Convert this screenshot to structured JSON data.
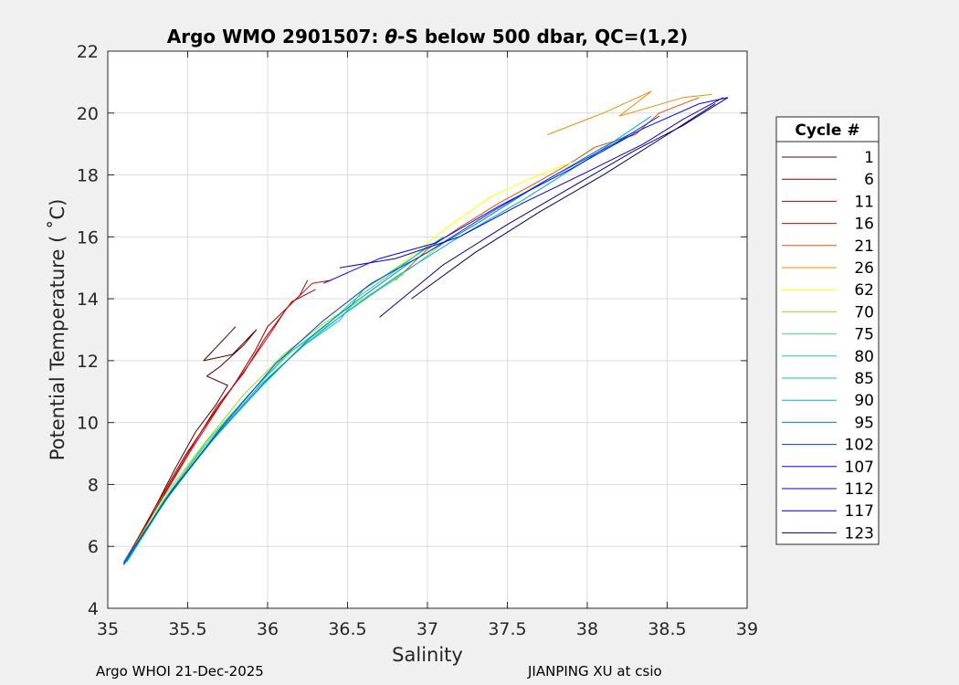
{
  "chart_data": {
    "type": "line",
    "title_main": "Argo WMO 2901507: ",
    "title_symbol": "θ",
    "title_tail": "-S below 500 dbar,  QC=(1,2)",
    "xlabel": "Salinity",
    "ylabel": "Potential Temperature ( ˚C)",
    "xlim": [
      35,
      39
    ],
    "ylim": [
      4,
      22
    ],
    "xticks": [
      35,
      35.5,
      36,
      36.5,
      37,
      37.5,
      38,
      38.5,
      39
    ],
    "yticks": [
      4,
      6,
      8,
      10,
      12,
      14,
      16,
      18,
      20,
      22
    ],
    "grid": true,
    "legend_title": "Cycle #",
    "legend_position": "right-outside",
    "series": [
      {
        "name": "1",
        "color": "#550000",
        "values": [
          [
            35.1,
            5.4
          ],
          [
            35.25,
            6.8
          ],
          [
            35.42,
            8.5
          ],
          [
            35.55,
            9.7
          ],
          [
            35.68,
            10.6
          ],
          [
            35.75,
            11.2
          ],
          [
            35.62,
            11.5
          ],
          [
            35.7,
            11.8
          ],
          [
            35.85,
            12.5
          ],
          [
            35.93,
            13.0
          ],
          [
            35.78,
            12.2
          ],
          [
            35.6,
            12.0
          ],
          [
            35.8,
            13.1
          ]
        ]
      },
      {
        "name": "6",
        "color": "#8b0000",
        "values": [
          [
            35.1,
            5.45
          ],
          [
            35.3,
            7.3
          ],
          [
            35.48,
            8.9
          ],
          [
            35.65,
            10.2
          ],
          [
            35.8,
            11.3
          ],
          [
            35.92,
            12.3
          ],
          [
            36.0,
            13.1
          ],
          [
            36.1,
            13.6
          ],
          [
            36.2,
            14.1
          ],
          [
            36.25,
            14.6
          ]
        ]
      },
      {
        "name": "11",
        "color": "#b50000",
        "values": [
          [
            35.12,
            5.5
          ],
          [
            35.32,
            7.4
          ],
          [
            35.5,
            9.0
          ],
          [
            35.68,
            10.5
          ],
          [
            35.85,
            11.6
          ],
          [
            35.98,
            12.7
          ],
          [
            36.08,
            13.4
          ],
          [
            36.15,
            13.9
          ],
          [
            36.3,
            14.3
          ]
        ]
      },
      {
        "name": "16",
        "color": "#d40000",
        "values": [
          [
            35.1,
            5.5
          ],
          [
            35.3,
            7.2
          ],
          [
            35.52,
            9.1
          ],
          [
            35.72,
            10.7
          ],
          [
            35.9,
            12.0
          ],
          [
            36.02,
            12.9
          ],
          [
            36.12,
            13.7
          ],
          [
            36.28,
            14.5
          ],
          [
            36.4,
            14.6
          ]
        ]
      },
      {
        "name": "21",
        "color": "#e25000",
        "values": [
          [
            36.8,
            14.6
          ],
          [
            37.0,
            15.6
          ],
          [
            37.2,
            16.3
          ],
          [
            37.45,
            17.1
          ],
          [
            37.7,
            17.8
          ],
          [
            37.9,
            18.4
          ],
          [
            38.05,
            18.9
          ],
          [
            38.3,
            19.3
          ],
          [
            38.45,
            20.0
          ],
          [
            38.7,
            20.5
          ]
        ]
      },
      {
        "name": "26",
        "color": "#f08c00",
        "values": [
          [
            37.75,
            19.3
          ],
          [
            38.1,
            20.0
          ],
          [
            38.4,
            20.7
          ],
          [
            38.2,
            19.9
          ],
          [
            38.6,
            20.5
          ],
          [
            38.78,
            20.6
          ]
        ]
      },
      {
        "name": "62",
        "color": "#ffff00",
        "values": [
          [
            36.7,
            14.6
          ],
          [
            36.95,
            15.6
          ],
          [
            37.15,
            16.4
          ],
          [
            37.4,
            17.3
          ],
          [
            37.65,
            17.9
          ],
          [
            37.9,
            18.4
          ]
        ]
      },
      {
        "name": "70",
        "color": "#90e020",
        "values": [
          [
            35.12,
            5.6
          ],
          [
            35.35,
            7.6
          ],
          [
            35.6,
            9.3
          ],
          [
            35.85,
            10.9
          ],
          [
            36.1,
            12.2
          ],
          [
            36.35,
            13.2
          ],
          [
            36.6,
            14.0
          ],
          [
            36.9,
            15.0
          ],
          [
            37.1,
            15.8
          ]
        ]
      },
      {
        "name": "75",
        "color": "#40e060",
        "values": [
          [
            35.12,
            5.6
          ],
          [
            35.38,
            7.7
          ],
          [
            35.62,
            9.4
          ],
          [
            35.9,
            11.0
          ],
          [
            36.15,
            12.3
          ],
          [
            36.45,
            13.4
          ],
          [
            36.7,
            14.3
          ],
          [
            36.85,
            14.8
          ]
        ]
      },
      {
        "name": "80",
        "color": "#20d090",
        "values": [
          [
            35.12,
            5.5
          ],
          [
            35.35,
            7.5
          ],
          [
            35.6,
            9.2
          ],
          [
            35.88,
            10.9
          ],
          [
            36.12,
            12.2
          ],
          [
            36.38,
            13.2
          ],
          [
            36.55,
            14.0
          ],
          [
            36.8,
            14.9
          ],
          [
            37.0,
            15.7
          ]
        ]
      },
      {
        "name": "85",
        "color": "#00c8c0",
        "values": [
          [
            35.12,
            5.5
          ],
          [
            35.4,
            7.8
          ],
          [
            35.7,
            9.7
          ],
          [
            35.95,
            11.1
          ],
          [
            36.2,
            12.4
          ],
          [
            36.45,
            13.3
          ],
          [
            36.6,
            14.3
          ],
          [
            36.9,
            15.3
          ],
          [
            37.1,
            16.0
          ]
        ]
      },
      {
        "name": "90",
        "color": "#00a8f0",
        "values": [
          [
            35.1,
            5.5
          ],
          [
            35.38,
            7.6
          ],
          [
            35.66,
            9.5
          ],
          [
            35.95,
            11.2
          ],
          [
            36.25,
            12.6
          ],
          [
            36.5,
            13.6
          ],
          [
            36.8,
            14.7
          ],
          [
            37.2,
            16.0
          ],
          [
            37.6,
            17.2
          ],
          [
            38.0,
            18.5
          ],
          [
            38.4,
            19.9
          ]
        ]
      },
      {
        "name": "95",
        "color": "#0080c0",
        "values": [
          [
            35.1,
            5.4
          ],
          [
            35.36,
            7.5
          ],
          [
            35.65,
            9.4
          ],
          [
            35.98,
            11.3
          ],
          [
            36.3,
            12.9
          ],
          [
            36.55,
            13.9
          ],
          [
            36.9,
            15.2
          ],
          [
            37.3,
            16.4
          ],
          [
            37.7,
            17.7
          ],
          [
            38.1,
            18.9
          ],
          [
            38.3,
            19.4
          ]
        ]
      },
      {
        "name": "102",
        "color": "#0040d0",
        "values": [
          [
            35.1,
            5.45
          ],
          [
            35.4,
            7.8
          ],
          [
            35.72,
            9.9
          ],
          [
            36.05,
            11.9
          ],
          [
            36.35,
            13.3
          ],
          [
            36.65,
            14.5
          ],
          [
            37.0,
            15.5
          ],
          [
            37.4,
            16.8
          ],
          [
            37.8,
            18.0
          ],
          [
            38.2,
            19.1
          ],
          [
            38.45,
            19.9
          ]
        ]
      },
      {
        "name": "107",
        "color": "#0000ff",
        "values": [
          [
            36.35,
            14.5
          ],
          [
            36.7,
            15.3
          ],
          [
            37.05,
            15.8
          ],
          [
            37.45,
            17.0
          ],
          [
            37.9,
            18.2
          ],
          [
            38.35,
            19.5
          ],
          [
            38.7,
            20.3
          ],
          [
            38.88,
            20.5
          ]
        ]
      },
      {
        "name": "112",
        "color": "#1000c0",
        "values": [
          [
            36.45,
            15.0
          ],
          [
            36.8,
            15.3
          ],
          [
            37.2,
            16.0
          ],
          [
            37.6,
            17.1
          ],
          [
            38.0,
            18.1
          ],
          [
            38.35,
            19.0
          ],
          [
            38.6,
            19.8
          ],
          [
            38.85,
            20.5
          ]
        ]
      },
      {
        "name": "117",
        "color": "#000090",
        "values": [
          [
            36.7,
            13.4
          ],
          [
            37.1,
            15.1
          ],
          [
            37.5,
            16.4
          ],
          [
            37.9,
            17.6
          ],
          [
            38.3,
            18.8
          ],
          [
            38.6,
            19.6
          ],
          [
            38.88,
            20.5
          ]
        ]
      },
      {
        "name": "123",
        "color": "#000050",
        "values": [
          [
            36.9,
            14.0
          ],
          [
            37.3,
            15.5
          ],
          [
            37.7,
            16.8
          ],
          [
            38.1,
            18.0
          ],
          [
            38.5,
            19.3
          ],
          [
            38.8,
            20.3
          ]
        ]
      }
    ]
  },
  "footer": {
    "left": "Argo WHOI 21-Dec-2025",
    "right": "JIANPING XU at csio"
  }
}
